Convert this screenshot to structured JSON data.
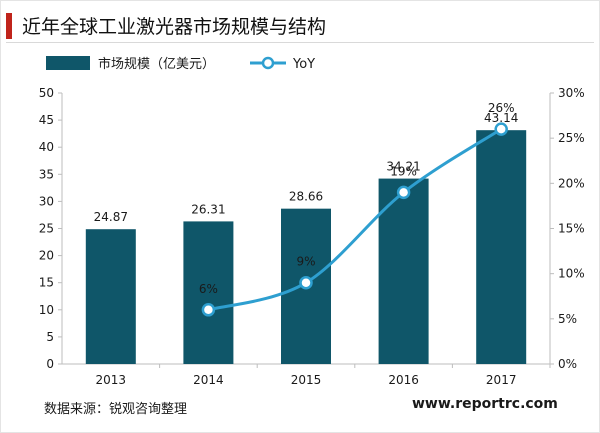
{
  "title": "近年全球工业激光器市场规模与结构",
  "footer": {
    "source": "数据来源：锐观咨询整理",
    "website": "www.reportrc.com"
  },
  "colors": {
    "accent": "#c0241b",
    "bar": "#0f5669",
    "line": "#2e9fd0",
    "marker_fill": "#ffffff"
  },
  "chart_data": {
    "type": "bar",
    "categories": [
      "2013",
      "2014",
      "2015",
      "2016",
      "2017"
    ],
    "series": [
      {
        "name": "市场规模（亿美元）",
        "type": "bar",
        "axis": "left",
        "values": [
          24.87,
          26.31,
          28.66,
          34.21,
          43.14
        ],
        "labels": [
          "24.87",
          "26.31",
          "28.66",
          "34.21",
          "43.14"
        ]
      },
      {
        "name": "YoY",
        "type": "line",
        "axis": "right",
        "values": [
          null,
          6,
          9,
          19,
          26
        ],
        "labels": [
          "",
          "6%",
          "9%",
          "19%",
          "26%"
        ]
      }
    ],
    "y_left": {
      "min": 0,
      "max": 50,
      "ticks": [
        "0",
        "5",
        "10",
        "15",
        "20",
        "25",
        "30",
        "35",
        "40",
        "45",
        "50"
      ]
    },
    "y_right": {
      "min": 0,
      "max": 30,
      "ticks": [
        "0%",
        "5%",
        "10%",
        "15%",
        "20%",
        "25%",
        "30%"
      ]
    },
    "legend_position": "top-left",
    "grid": false
  }
}
